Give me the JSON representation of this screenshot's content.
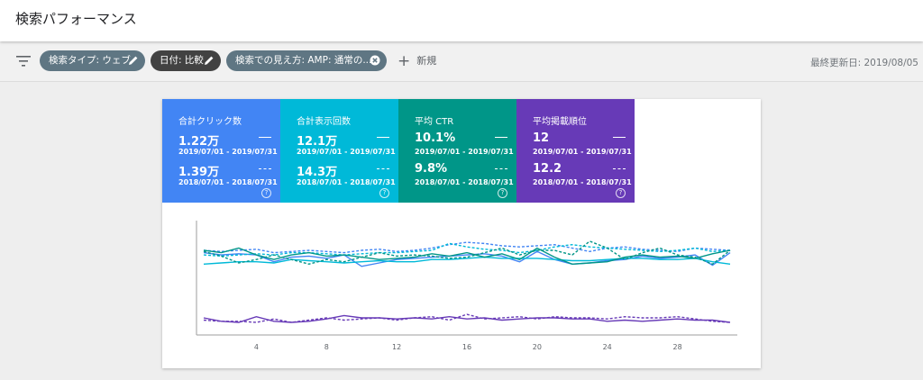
{
  "header": {
    "title": "検索パフォーマンス"
  },
  "filters": {
    "chips": [
      {
        "label": "検索タイプ: ウェブ",
        "icon": "pencil-icon"
      },
      {
        "label": "日付: 比較",
        "icon": "pencil-icon"
      },
      {
        "label": "検索での見え方: AMP: 通常の...",
        "icon": "close-circle-icon"
      }
    ],
    "add_label": "新規",
    "last_updated": "最終更新日: 2019/08/05"
  },
  "metrics": [
    {
      "label": "合計クリック数",
      "current": "1.22万",
      "current_range": "2019/07/01 - 2019/07/31",
      "previous": "1.39万",
      "previous_range": "2018/07/01 - 2018/07/31",
      "color": "#4285f4"
    },
    {
      "label": "合計表示回数",
      "current": "12.1万",
      "current_range": "2019/07/01 - 2019/07/31",
      "previous": "14.3万",
      "previous_range": "2018/07/01 - 2018/07/31",
      "color": "#00b9d8"
    },
    {
      "label": "平均 CTR",
      "current": "10.1%",
      "current_range": "2019/07/01 - 2019/07/31",
      "previous": "9.8%",
      "previous_range": "2018/07/01 - 2018/07/31",
      "color": "#009688"
    },
    {
      "label": "平均掲載順位",
      "current": "12",
      "current_range": "2019/07/01 - 2019/07/31",
      "previous": "12.2",
      "previous_range": "2018/07/01 - 2018/07/31",
      "color": "#673ab7"
    }
  ],
  "chart_data": {
    "type": "line",
    "x": [
      1,
      2,
      3,
      4,
      5,
      6,
      7,
      8,
      9,
      10,
      11,
      12,
      13,
      14,
      15,
      16,
      17,
      18,
      19,
      20,
      21,
      22,
      23,
      24,
      25,
      26,
      27,
      28,
      29,
      30,
      31
    ],
    "xticks": [
      4,
      8,
      12,
      16,
      20,
      24,
      28
    ],
    "xlim": [
      1,
      31
    ],
    "ylim": [
      0,
      100
    ],
    "grid": false,
    "series": [
      {
        "color": "#4285f4",
        "style": "solid",
        "values": [
          72,
          70,
          71,
          70,
          64,
          68,
          69,
          67,
          70,
          60,
          63,
          66,
          67,
          68,
          69,
          70,
          71,
          69,
          64,
          73,
          66,
          62,
          63,
          65,
          66,
          69,
          67,
          68,
          70,
          61,
          72
        ]
      },
      {
        "color": "#4285f4",
        "style": "dashed",
        "values": [
          74,
          73,
          74,
          75,
          72,
          73,
          74,
          73,
          72,
          74,
          75,
          73,
          74,
          76,
          79,
          81,
          80,
          78,
          77,
          78,
          79,
          76,
          73,
          76,
          77,
          75,
          74,
          73,
          76,
          75,
          74
        ]
      },
      {
        "color": "#00b9d8",
        "style": "solid",
        "values": [
          62,
          63,
          64,
          64,
          63,
          66,
          65,
          64,
          63,
          64,
          65,
          64,
          64,
          66,
          66,
          67,
          68,
          67,
          67,
          67,
          66,
          65,
          65,
          66,
          67,
          67,
          66,
          66,
          67,
          64,
          62
        ]
      },
      {
        "color": "#00b9d8",
        "style": "dashed",
        "values": [
          70,
          69,
          70,
          71,
          70,
          72,
          72,
          71,
          70,
          71,
          72,
          72,
          73,
          74,
          80,
          77,
          75,
          74,
          72,
          74,
          77,
          79,
          77,
          76,
          75,
          74,
          73,
          74,
          76,
          73,
          74
        ]
      },
      {
        "color": "#009688",
        "style": "solid",
        "values": [
          74,
          72,
          76,
          70,
          66,
          70,
          72,
          69,
          70,
          68,
          66,
          67,
          68,
          71,
          69,
          72,
          68,
          71,
          66,
          76,
          68,
          62,
          63,
          64,
          68,
          70,
          68,
          69,
          67,
          71,
          74
        ]
      },
      {
        "color": "#009688",
        "style": "dashed",
        "values": [
          73,
          69,
          63,
          66,
          70,
          66,
          62,
          66,
          64,
          68,
          72,
          69,
          70,
          69,
          67,
          68,
          72,
          76,
          70,
          74,
          74,
          70,
          82,
          76,
          66,
          72,
          76,
          70,
          68,
          62,
          74
        ]
      },
      {
        "color": "#673ab7",
        "style": "solid",
        "values": [
          15,
          12,
          11,
          16,
          12,
          11,
          12,
          14,
          17,
          15,
          15,
          14,
          15,
          14,
          16,
          14,
          15,
          13,
          14,
          15,
          15,
          14,
          14,
          12,
          13,
          12,
          13,
          14,
          13,
          13,
          11
        ]
      },
      {
        "color": "#673ab7",
        "style": "dashed",
        "values": [
          13,
          12,
          12,
          11,
          14,
          11,
          13,
          15,
          13,
          14,
          15,
          13,
          15,
          16,
          13,
          18,
          14,
          15,
          16,
          14,
          16,
          15,
          15,
          14,
          16,
          15,
          15,
          16,
          14,
          12,
          11
        ]
      }
    ]
  }
}
